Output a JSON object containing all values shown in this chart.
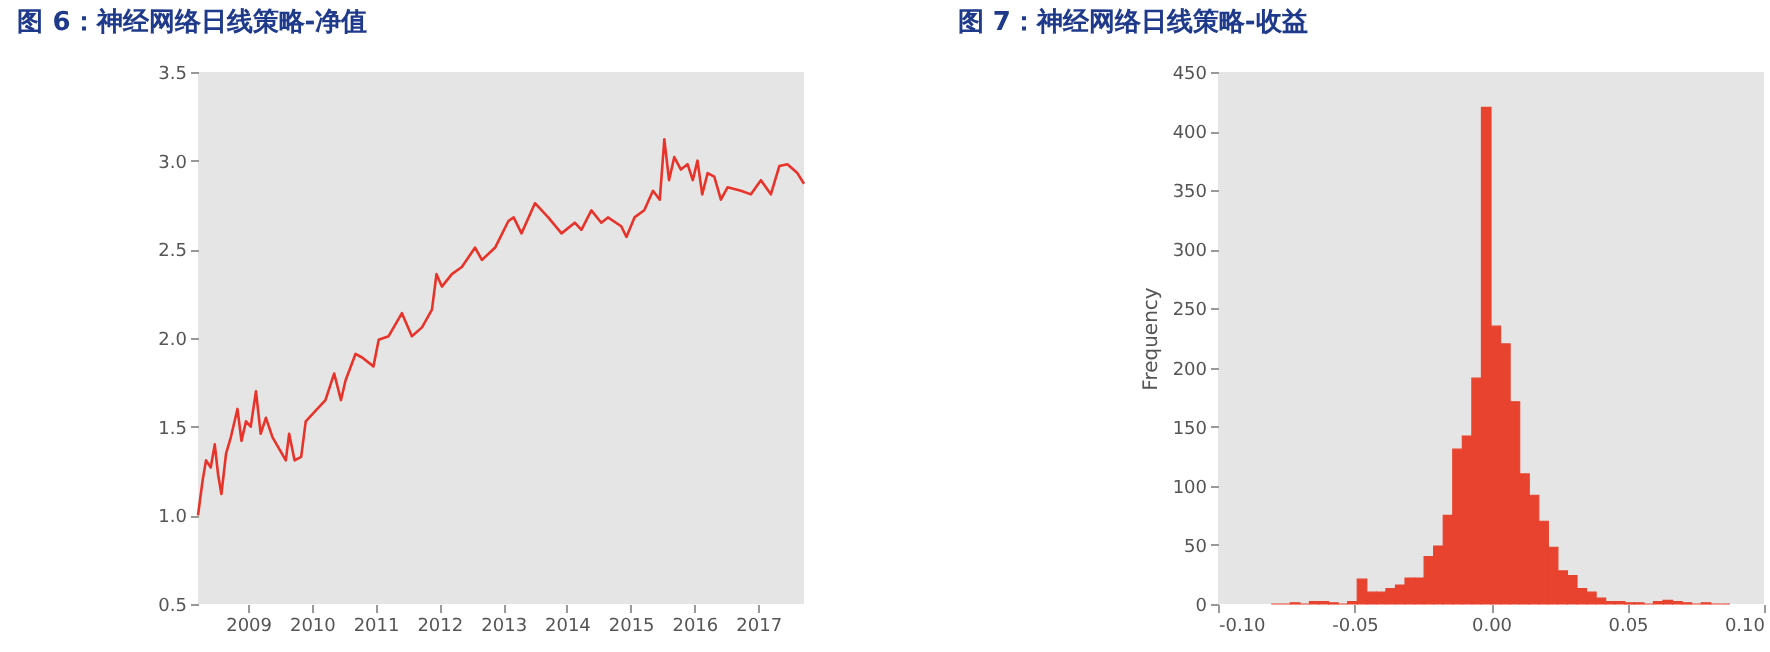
{
  "chart_data": [
    {
      "type": "line",
      "title": "图 6：神经网络日线策略-净值",
      "x": [
        "2008-03-20",
        "2008-04-16",
        "2008-05-05",
        "2008-06-01",
        "2008-06-24",
        "2008-07-13",
        "2008-08-01",
        "2008-08-28",
        "2008-09-24",
        "2008-11-01",
        "2008-11-24",
        "2008-12-20",
        "2009-01-16",
        "2009-02-15",
        "2009-03-14",
        "2009-04-13",
        "2009-05-21",
        "2009-08-05",
        "2009-08-24",
        "2009-09-24",
        "2009-11-01",
        "2009-11-27",
        "2010-01-23",
        "2010-03-20",
        "2010-05-09",
        "2010-06-17",
        "2010-07-13",
        "2010-09-08",
        "2010-10-16",
        "2010-12-20",
        "2011-01-19",
        "2011-03-17",
        "2011-06-01",
        "2011-07-28",
        "2011-09-24",
        "2011-11-20",
        "2011-12-16",
        "2012-01-16",
        "2012-03-13",
        "2012-05-09",
        "2012-07-24",
        "2012-09-01",
        "2012-11-16",
        "2013-01-31",
        "2013-03-02",
        "2013-04-16",
        "2013-07-02",
        "2013-09-16",
        "2013-12-01",
        "2014-02-15",
        "2014-03-25",
        "2014-05-21",
        "2014-07-17",
        "2014-08-24",
        "2014-11-08",
        "2014-12-08",
        "2015-01-23",
        "2015-03-20",
        "2015-05-09",
        "2015-06-17",
        "2015-07-13",
        "2015-08-09",
        "2015-09-08",
        "2015-10-16",
        "2015-11-23",
        "2015-12-23",
        "2016-01-19",
        "2016-02-15",
        "2016-03-17",
        "2016-04-24",
        "2016-06-01",
        "2016-07-09",
        "2016-09-24",
        "2016-11-20",
        "2017-01-16",
        "2017-03-14",
        "2017-05-02",
        "2017-06-17",
        "2017-08-13",
        "2017-09-20"
      ],
      "series": [
        {
          "color": "#e8332a",
          "values": [
            1.0,
            1.2,
            1.31,
            1.27,
            1.4,
            1.23,
            1.12,
            1.35,
            1.44,
            1.6,
            1.42,
            1.53,
            1.5,
            1.7,
            1.46,
            1.55,
            1.44,
            1.31,
            1.46,
            1.31,
            1.33,
            1.53,
            1.59,
            1.65,
            1.8,
            1.65,
            1.76,
            1.91,
            1.89,
            1.84,
            1.99,
            2.01,
            2.14,
            2.01,
            2.06,
            2.16,
            2.36,
            2.29,
            2.36,
            2.4,
            2.51,
            2.44,
            2.51,
            2.66,
            2.68,
            2.59,
            2.76,
            2.68,
            2.59,
            2.65,
            2.61,
            2.72,
            2.65,
            2.68,
            2.63,
            2.57,
            2.68,
            2.72,
            2.83,
            2.78,
            3.12,
            2.89,
            3.02,
            2.95,
            2.98,
            2.89,
            3.0,
            2.81,
            2.93,
            2.91,
            2.78,
            2.85,
            2.83,
            2.81,
            2.89,
            2.81,
            2.97,
            2.98,
            2.93,
            2.87
          ]
        }
      ],
      "xlim": [
        "2008-03-20",
        "2017-09-20"
      ],
      "xticks": [
        {
          "value": "2009-01-01",
          "label": "2009"
        },
        {
          "value": "2010-01-01",
          "label": "2010"
        },
        {
          "value": "2011-01-01",
          "label": "2011"
        },
        {
          "value": "2012-01-01",
          "label": "2012"
        },
        {
          "value": "2013-01-01",
          "label": "2013"
        },
        {
          "value": "2014-01-01",
          "label": "2014"
        },
        {
          "value": "2015-01-01",
          "label": "2015"
        },
        {
          "value": "2016-01-01",
          "label": "2016"
        },
        {
          "value": "2017-01-01",
          "label": "2017"
        }
      ],
      "ylim": [
        0.5,
        3.5
      ],
      "yticks": [
        0.5,
        {
          "value": 1,
          "label": "1.0"
        },
        1.5,
        {
          "value": 2,
          "label": "2.0"
        },
        2.5,
        {
          "value": 3,
          "label": "3.0"
        },
        3.5
      ],
      "grid": false
    },
    {
      "type": "histogram",
      "title": "图 7：神经网络日线策略-收益",
      "ylabel": "Frequency",
      "bins": [
        -0.0805,
        -0.077,
        -0.0735,
        -0.07,
        -0.0665,
        -0.063,
        -0.0595,
        -0.056,
        -0.0525,
        -0.049,
        -0.0455,
        -0.042,
        -0.0385,
        -0.035,
        -0.0315,
        -0.028,
        -0.0245,
        -0.021,
        -0.0175,
        -0.014,
        -0.0105,
        -0.007,
        -0.0035,
        0,
        0.0035,
        0.007,
        0.0105,
        0.014,
        0.0175,
        0.021,
        0.0245,
        0.028,
        0.0315,
        0.035,
        0.0385,
        0.042,
        0.0455,
        0.049,
        0.0525,
        0.056,
        0.0595,
        0.063,
        0.0665,
        0.07,
        0.0735,
        0.077,
        0.0805,
        0.084,
        0.0875
      ],
      "values": [
        0,
        0,
        1,
        0,
        2,
        2,
        1,
        0,
        2,
        21,
        10,
        10,
        13,
        16,
        22,
        22,
        40,
        49,
        75,
        131,
        142,
        191,
        420,
        235,
        220,
        171,
        110,
        92,
        70,
        48,
        28,
        24,
        13,
        10,
        5,
        2,
        2,
        1,
        1,
        0,
        2,
        3,
        2,
        1,
        0,
        1,
        0,
        0
      ],
      "color": "#e8432e",
      "xlim": [
        -0.1,
        0.1
      ],
      "xticks": [
        {
          "value": -0.1,
          "label": "-0.10"
        },
        {
          "value": -0.05,
          "label": "-0.05"
        },
        {
          "value": 0,
          "label": "0.00"
        },
        {
          "value": 0.05,
          "label": "0.05"
        },
        {
          "value": 0.1,
          "label": "0.10"
        }
      ],
      "ylim": [
        0,
        450
      ],
      "yticks": [
        0,
        50,
        100,
        150,
        200,
        250,
        300,
        350,
        400,
        450
      ],
      "grid": false
    }
  ]
}
